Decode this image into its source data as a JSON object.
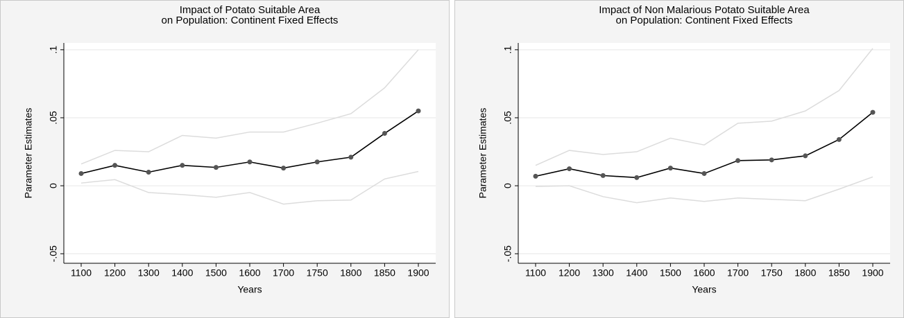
{
  "chart_data": [
    {
      "type": "line",
      "title": [
        "Impact of Potato Suitable Area",
        "on Population: Continent Fixed Effects"
      ],
      "x_label": "Years",
      "y_label": "Parameter Estimates",
      "categories": [
        1100,
        1200,
        1300,
        1400,
        1500,
        1600,
        1700,
        1750,
        1800,
        1850,
        1900
      ],
      "series": [
        {
          "color": "#dcdcdc",
          "values": [
            0.016,
            0.026,
            0.025,
            0.037,
            0.035,
            0.0395,
            0.0395,
            0.046,
            0.053,
            0.072,
            0.1
          ]
        },
        {
          "color": "#dcdcdc",
          "values": [
            0.002,
            0.0045,
            -0.005,
            -0.0065,
            -0.0085,
            -0.005,
            -0.0135,
            -0.011,
            -0.0105,
            0.005,
            0.0105
          ]
        },
        {
          "color": "#000000",
          "marker_color": "#555555",
          "values": [
            0.009,
            0.015,
            0.01,
            0.015,
            0.0135,
            0.0175,
            0.013,
            0.0175,
            0.021,
            0.0385,
            0.055
          ]
        }
      ],
      "ylim": [
        -0.057,
        0.105
      ],
      "yticks": [
        {
          "value": -0.05,
          "label": "-.05"
        },
        0,
        {
          "value": 0.05,
          "label": ".05"
        },
        {
          "value": 0.1,
          "label": ".1"
        }
      ],
      "grid": true
    },
    {
      "type": "line",
      "title": [
        "Impact of Non Malarious Potato Suitable Area",
        "on Population: Continent Fixed Effects"
      ],
      "x_label": "Years",
      "y_label": "Parameter Estimates",
      "categories": [
        1100,
        1200,
        1300,
        1400,
        1500,
        1600,
        1700,
        1750,
        1800,
        1850,
        1900
      ],
      "series": [
        {
          "color": "#dcdcdc",
          "values": [
            0.015,
            0.026,
            0.023,
            0.025,
            0.035,
            0.03,
            0.046,
            0.0475,
            0.055,
            0.07,
            0.101
          ]
        },
        {
          "color": "#dcdcdc",
          "values": [
            -0.0005,
            0,
            -0.008,
            -0.0125,
            -0.009,
            -0.0115,
            -0.009,
            -0.01,
            -0.011,
            -0.0025,
            0.0065
          ]
        },
        {
          "color": "#000000",
          "marker_color": "#555555",
          "values": [
            0.007,
            0.0125,
            0.0075,
            0.006,
            0.013,
            0.009,
            0.0185,
            0.019,
            0.022,
            0.034,
            0.054
          ]
        }
      ],
      "ylim": [
        -0.057,
        0.105
      ],
      "yticks": [
        {
          "value": -0.05,
          "label": "-.05"
        },
        0,
        {
          "value": 0.05,
          "label": ".05"
        },
        {
          "value": 0.1,
          "label": ".1"
        }
      ],
      "grid": true
    }
  ]
}
